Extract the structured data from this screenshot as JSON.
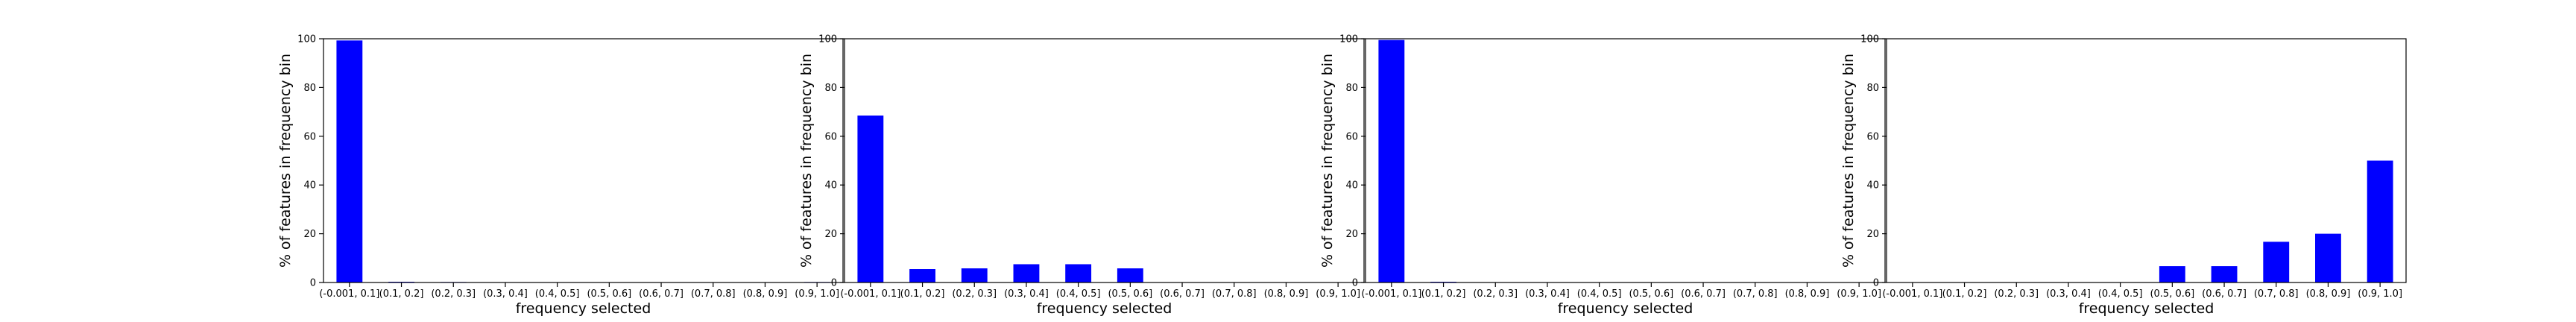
{
  "chart_data": [
    {
      "type": "bar",
      "title": "",
      "xlabel": "frequency selected",
      "ylabel": "% of features in frequency bin",
      "ylim": [
        0,
        100
      ],
      "yticks": [
        "0",
        "20",
        "40",
        "60",
        "80",
        "100"
      ],
      "categories": [
        "(-0.001, 0.1]",
        "(0.1, 0.2]",
        "(0.2, 0.3]",
        "(0.3, 0.4]",
        "(0.4, 0.5]",
        "(0.5, 0.6]",
        "(0.6, 0.7]",
        "(0.7, 0.8]",
        "(0.8, 0.9]",
        "(0.9, 1.0]"
      ],
      "values": [
        99.3,
        0.3,
        0.2,
        0,
        0,
        0,
        0,
        0,
        0,
        0.2
      ],
      "color": "#0000ff"
    },
    {
      "type": "bar",
      "title": "",
      "xlabel": "frequency selected",
      "ylabel": "% of features in frequency bin",
      "ylim": [
        0,
        100
      ],
      "yticks": [
        "0",
        "20",
        "40",
        "60",
        "80",
        "100"
      ],
      "categories": [
        "(-0.001, 0.1]",
        "(0.1, 0.2]",
        "(0.2, 0.3]",
        "(0.3, 0.4]",
        "(0.4, 0.5]",
        "(0.5, 0.6]",
        "(0.6, 0.7]",
        "(0.7, 0.8]",
        "(0.8, 0.9]",
        "(0.9, 1.0]"
      ],
      "values": [
        68.5,
        5.5,
        5.8,
        7.5,
        7.5,
        5.8,
        0,
        0,
        0,
        0
      ],
      "color": "#0000ff"
    },
    {
      "type": "bar",
      "title": "",
      "xlabel": "frequency selected",
      "ylabel": "% of features in frequency bin",
      "ylim": [
        0,
        100
      ],
      "yticks": [
        "0",
        "20",
        "40",
        "60",
        "80",
        "100"
      ],
      "categories": [
        "(-0.001, 0.1]",
        "(0.1, 0.2]",
        "(0.2, 0.3]",
        "(0.3, 0.4]",
        "(0.4, 0.5]",
        "(0.5, 0.6]",
        "(0.6, 0.7]",
        "(0.7, 0.8]",
        "(0.8, 0.9]",
        "(0.9, 1.0]"
      ],
      "values": [
        99.5,
        0.3,
        0,
        0,
        0,
        0,
        0,
        0,
        0,
        0
      ],
      "color": "#0000ff"
    },
    {
      "type": "bar",
      "title": "",
      "xlabel": "frequency selected",
      "ylabel": "% of features in frequency bin",
      "ylim": [
        0,
        100
      ],
      "yticks": [
        "0",
        "20",
        "40",
        "60",
        "80",
        "100"
      ],
      "categories": [
        "(-0.001, 0.1]",
        "(0.1, 0.2]",
        "(0.2, 0.3]",
        "(0.3, 0.4]",
        "(0.4, 0.5]",
        "(0.5, 0.6]",
        "(0.6, 0.7]",
        "(0.7, 0.8]",
        "(0.8, 0.9]",
        "(0.9, 1.0]"
      ],
      "values": [
        0,
        0,
        0,
        0,
        0,
        6.7,
        6.7,
        16.7,
        20,
        50
      ],
      "color": "#0000ff"
    }
  ]
}
